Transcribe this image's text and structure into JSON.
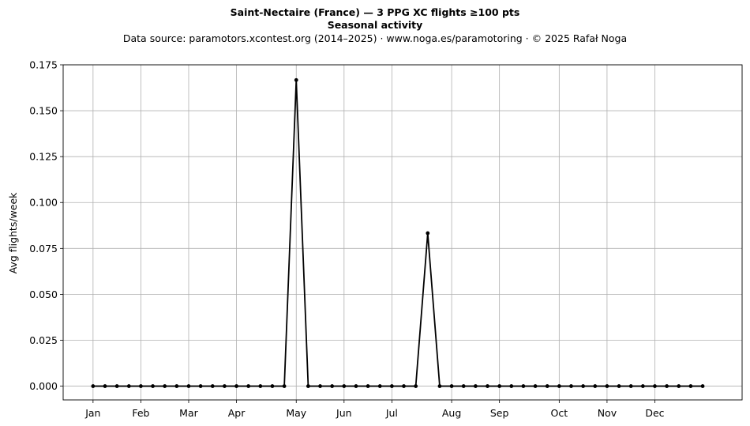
{
  "chart_data": {
    "type": "line",
    "title": "Saint-Nectaire (France)  —  3 PPG XC flights ≥100 pts",
    "subtitle": "Seasonal activity",
    "source": "Data source: paramotors.xcontest.org (2014–2025)  ·  www.noga.es/paramotoring  ·  © 2025 Rafał Noga",
    "xlabel": "",
    "ylabel": "Avg flights/week",
    "xlim": [
      -2.5,
      54.3
    ],
    "ylim": [
      -0.0075,
      0.175
    ],
    "y_ticks": [
      "0.000",
      "0.025",
      "0.050",
      "0.075",
      "0.100",
      "0.125",
      "0.150",
      "0.175"
    ],
    "y_tick_values": [
      0,
      0.025,
      0.05,
      0.075,
      0.1,
      0.125,
      0.15,
      0.175
    ],
    "month_ticks": [
      {
        "label": "Jan",
        "week": 0
      },
      {
        "label": "Feb",
        "week": 4
      },
      {
        "label": "Mar",
        "week": 8
      },
      {
        "label": "Apr",
        "week": 12
      },
      {
        "label": "May",
        "week": 17
      },
      {
        "label": "Jun",
        "week": 21
      },
      {
        "label": "Jul",
        "week": 25
      },
      {
        "label": "Aug",
        "week": 30
      },
      {
        "label": "Sep",
        "week": 34
      },
      {
        "label": "Oct",
        "week": 39
      },
      {
        "label": "Nov",
        "week": 43
      },
      {
        "label": "Dec",
        "week": 47
      }
    ],
    "grid": true,
    "series": [
      {
        "color": "#000000",
        "x": [
          0,
          1,
          2,
          3,
          4,
          5,
          6,
          7,
          8,
          9,
          10,
          11,
          12,
          13,
          14,
          15,
          16,
          17,
          18,
          19,
          20,
          21,
          22,
          23,
          24,
          25,
          26,
          27,
          28,
          29,
          30,
          31,
          32,
          33,
          34,
          35,
          36,
          37,
          38,
          39,
          40,
          41,
          42,
          43,
          44,
          45,
          46,
          47,
          48,
          49,
          50,
          51
        ],
        "values": [
          0,
          0,
          0,
          0,
          0,
          0,
          0,
          0,
          0,
          0,
          0,
          0,
          0,
          0,
          0,
          0,
          0,
          0.1667,
          0,
          0,
          0,
          0,
          0,
          0,
          0,
          0,
          0,
          0,
          0.0833,
          0,
          0,
          0,
          0,
          0,
          0,
          0,
          0,
          0,
          0,
          0,
          0,
          0,
          0,
          0,
          0,
          0,
          0,
          0,
          0,
          0,
          0,
          0
        ]
      }
    ]
  }
}
